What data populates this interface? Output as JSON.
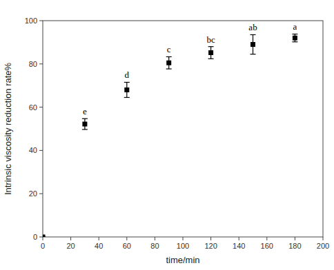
{
  "chart_data": {
    "type": "scatter",
    "x": [
      0,
      30,
      60,
      90,
      120,
      150,
      180
    ],
    "series": [
      {
        "values": [
          0,
          52.2,
          68.0,
          80.5,
          85.2,
          89.0,
          92.0
        ],
        "errors": [
          0,
          2.5,
          3.5,
          2.8,
          2.8,
          4.5,
          1.8
        ],
        "labels": [
          null,
          "e",
          "d",
          "c",
          "bc",
          "ab",
          "a"
        ],
        "color": "#000000",
        "marker": "square"
      }
    ],
    "xlabel": "time/min",
    "ylabel": "Intrinsic viscosity reduction rate%",
    "xlim": [
      0,
      200
    ],
    "ylim": [
      0,
      100
    ],
    "xticks": [
      0,
      20,
      40,
      60,
      80,
      100,
      120,
      140,
      160,
      180,
      200
    ],
    "yticks": [
      0,
      20,
      40,
      60,
      80,
      100
    ],
    "grid": false
  }
}
